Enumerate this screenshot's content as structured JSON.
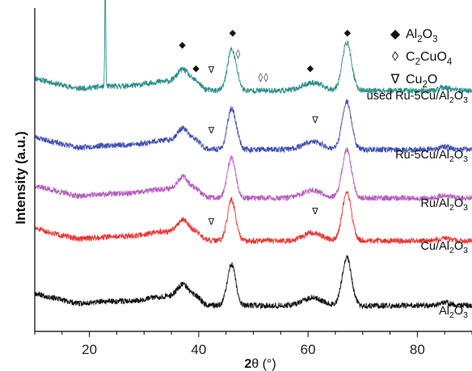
{
  "chart_data": {
    "type": "line",
    "xlabel_bold": "2",
    "xlabel_theta": "θ",
    "xlabel_unit": " (°)",
    "ylabel": "Intensity (a.u.)",
    "xlim": [
      10,
      90
    ],
    "x_ticks": [
      "20",
      "40",
      "60",
      "80"
    ],
    "x_tick_values": [
      20,
      40,
      60,
      80
    ],
    "grid": false,
    "legend_position": "top-right",
    "legend": [
      {
        "symbol": "◆",
        "base": "Al",
        "sub1": "2",
        "mid": "O",
        "sub2": "3",
        "tail": ""
      },
      {
        "symbol": "◊",
        "base": "C",
        "sub1": "2",
        "mid": "CuO",
        "sub2": "4",
        "tail": ""
      },
      {
        "symbol": "∇",
        "base": "Cu",
        "sub1": "2",
        "mid": "O",
        "sub2": "",
        "tail": ""
      }
    ],
    "series": [
      {
        "name": "used Ru-5Cu/Al2O3",
        "prefix": "used Ru-5Cu/Al",
        "sub1": "2",
        "mid": "O",
        "sub2": "3",
        "color": "#2a8f8a",
        "offset": 4.0,
        "seed": 11,
        "sharp_peak": 22.9
      },
      {
        "name": "Ru-5Cu/Al2O3",
        "prefix": "Ru-5Cu/Al",
        "sub1": "2",
        "mid": "O",
        "sub2": "3",
        "color": "#3f4fb3",
        "offset": 3.0,
        "seed": 23
      },
      {
        "name": "Ru/Al2O3",
        "prefix": "Ru/Al",
        "sub1": "2",
        "mid": "O",
        "sub2": "3",
        "color": "#b45cc0",
        "offset": 2.0,
        "seed": 37
      },
      {
        "name": "Cu/Al2O3",
        "prefix": "Cu/Al",
        "sub1": "2",
        "mid": "O",
        "sub2": "3",
        "color": "#e8332f",
        "offset": 1.0,
        "seed": 51
      },
      {
        "name": "Al2O3",
        "prefix": "Al",
        "sub1": "2",
        "mid": "O",
        "sub2": "3",
        "color": "#111111",
        "offset": 0.0,
        "seed": 67
      }
    ],
    "annotations": [
      {
        "symbol": "◊",
        "x": 22.9,
        "series": 0,
        "above": 3.55
      },
      {
        "symbol": "◆",
        "x": 37.0,
        "series": 0,
        "above": 1.2
      },
      {
        "symbol": "◆",
        "x": 39.5,
        "series": 0,
        "above": 0.55
      },
      {
        "symbol": "◆",
        "x": 46.2,
        "series": 0,
        "above": 1.55
      },
      {
        "symbol": "◊",
        "x": 47.2,
        "series": 0,
        "above": 0.95
      },
      {
        "symbol": "◊",
        "x": 51.3,
        "series": 0,
        "above": 0.3
      },
      {
        "symbol": "◊",
        "x": 52.3,
        "series": 0,
        "above": 0.3
      },
      {
        "symbol": "◆",
        "x": 60.4,
        "series": 0,
        "above": 0.55
      },
      {
        "symbol": "◆",
        "x": 67.2,
        "series": 0,
        "above": 1.55
      },
      {
        "symbol": "∇",
        "x": 42.3,
        "series": 0,
        "above": 0.5
      },
      {
        "symbol": "∇",
        "x": 42.3,
        "series": 1,
        "above": 0.45
      },
      {
        "symbol": "∇",
        "x": 61.3,
        "series": 1,
        "above": 0.75
      },
      {
        "symbol": "∇",
        "x": 42.3,
        "series": 3,
        "above": 0.45
      },
      {
        "symbol": "∇",
        "x": 61.3,
        "series": 3,
        "above": 0.75
      }
    ]
  }
}
